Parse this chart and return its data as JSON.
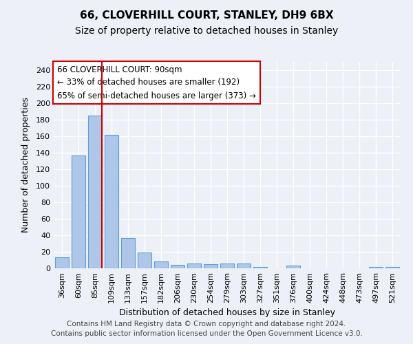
{
  "title1": "66, CLOVERHILL COURT, STANLEY, DH9 6BX",
  "title2": "Size of property relative to detached houses in Stanley",
  "xlabel": "Distribution of detached houses by size in Stanley",
  "ylabel": "Number of detached properties",
  "bar_labels": [
    "36sqm",
    "60sqm",
    "85sqm",
    "109sqm",
    "133sqm",
    "157sqm",
    "182sqm",
    "206sqm",
    "230sqm",
    "254sqm",
    "279sqm",
    "303sqm",
    "327sqm",
    "351sqm",
    "376sqm",
    "400sqm",
    "424sqm",
    "448sqm",
    "473sqm",
    "497sqm",
    "521sqm"
  ],
  "bar_values": [
    13,
    137,
    185,
    162,
    37,
    19,
    8,
    4,
    6,
    5,
    6,
    6,
    2,
    0,
    3,
    0,
    0,
    0,
    0,
    2,
    2
  ],
  "bar_color": "#aec6e8",
  "bar_edge_color": "#5a9fd4",
  "vline_color": "#cc0000",
  "vline_x_index": 2,
  "annotation_line1": "66 CLOVERHILL COURT: 90sqm",
  "annotation_line2": "← 33% of detached houses are smaller (192)",
  "annotation_line3": "65% of semi-detached houses are larger (373) →",
  "ylim": [
    0,
    250
  ],
  "yticks": [
    0,
    20,
    40,
    60,
    80,
    100,
    120,
    140,
    160,
    180,
    200,
    220,
    240
  ],
  "footer_text": "Contains HM Land Registry data © Crown copyright and database right 2024.\nContains public sector information licensed under the Open Government Licence v3.0.",
  "background_color": "#edf1f7",
  "grid_color": "#ffffff",
  "title_fontsize": 11,
  "subtitle_fontsize": 10,
  "axis_label_fontsize": 9,
  "tick_fontsize": 8,
  "annotation_fontsize": 8.5,
  "footer_fontsize": 7.5
}
